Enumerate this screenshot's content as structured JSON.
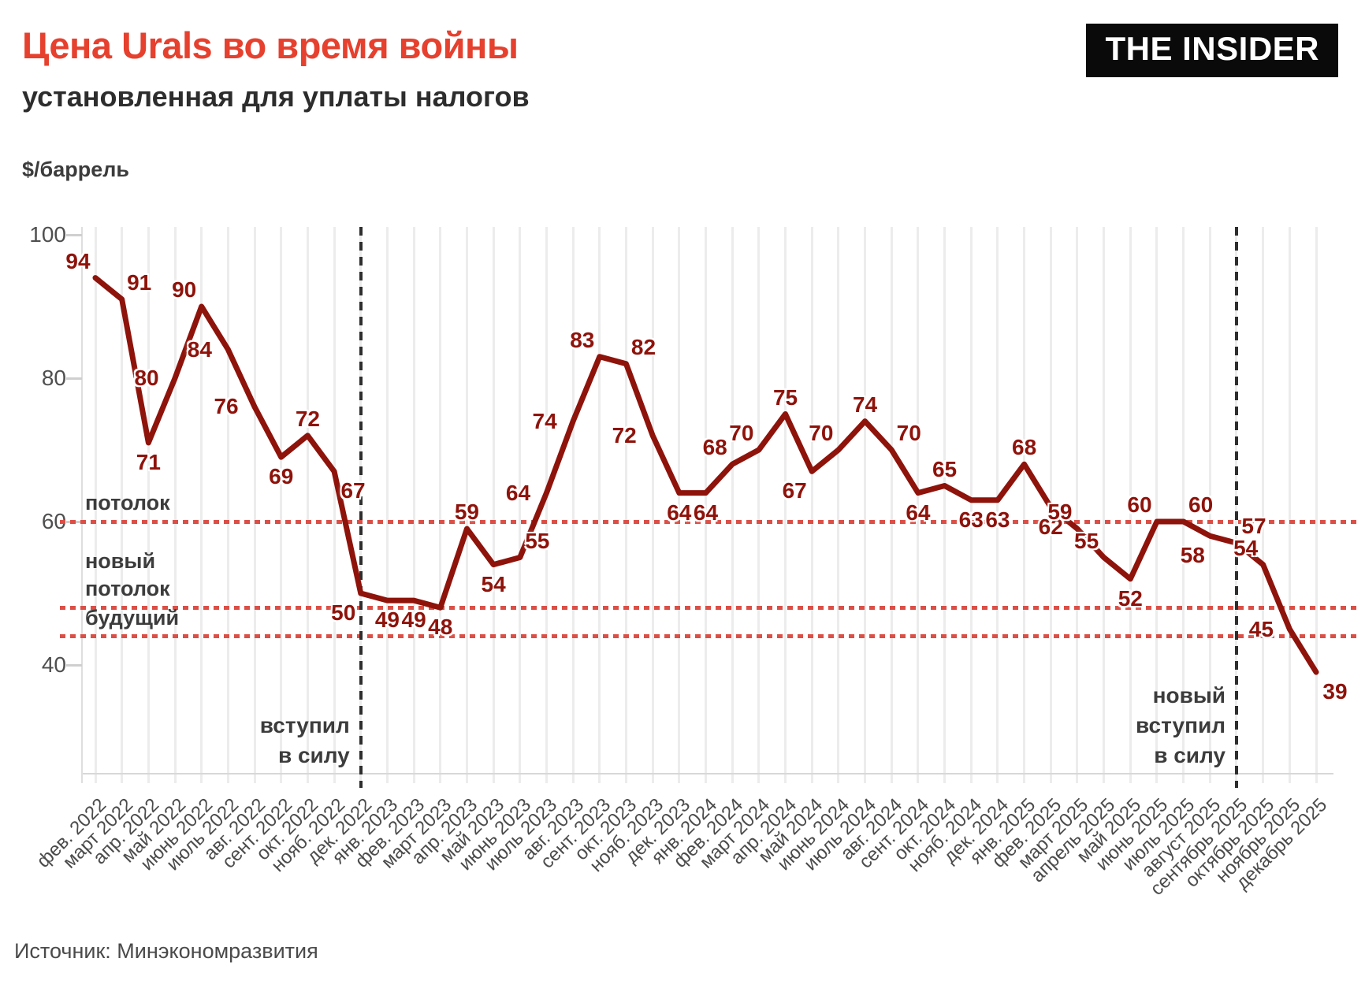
{
  "header": {
    "title": "Цена Urals во время войны",
    "subtitle": "установленная для уплаты налогов",
    "logo": "THE INSIDER"
  },
  "y_axis": {
    "unit_label": "$/баррель",
    "ticks": [
      100,
      80,
      60,
      40
    ]
  },
  "source": "Источник: Минэкономразвития",
  "colors": {
    "title_accent": "#e6402e",
    "series_line": "#8e130b",
    "data_label": "#8e130b",
    "reference_dotted": "#dc4f46",
    "event_dashed": "#2e2e2e",
    "grid": "#ececec"
  },
  "reference_lines": [
    {
      "label_lines": [
        "потолок"
      ],
      "value": 60
    },
    {
      "label_lines": [
        "новый",
        "потолок"
      ],
      "value": 48
    },
    {
      "label_lines": [
        "будущий"
      ],
      "value": 44
    }
  ],
  "event_lines": [
    {
      "month": "дек. 2022",
      "month_index": 10,
      "label_lines": [
        "вступил",
        "в силу"
      ]
    },
    {
      "month": "сентябрь 2025",
      "month_index": 43,
      "label_lines": [
        "новый",
        "вступил",
        "в силу"
      ]
    }
  ],
  "chart_data": {
    "type": "line",
    "title": "Цена Urals во время войны, установленная для уплаты налогов",
    "xlabel": "",
    "ylabel": "$/баррель",
    "ylim": [
      25,
      102
    ],
    "yticks": [
      40,
      60,
      80,
      100
    ],
    "grid": "vertical-only",
    "legend_position": "none",
    "x": [
      "фев. 2022",
      "март 2022",
      "апр. 2022",
      "май 2022",
      "июнь 2022",
      "июль 2022",
      "авг. 2022",
      "сент. 2022",
      "окт. 2022",
      "нояб. 2022",
      "дек. 2022",
      "янв. 2023",
      "фев. 2023",
      "март 2023",
      "апр. 2023",
      "май 2023",
      "июнь 2023",
      "июль 2023",
      "авг. 2023",
      "сент. 2023",
      "окт. 2023",
      "нояб. 2023",
      "дек. 2023",
      "янв. 2024",
      "фев. 2024",
      "март 2024",
      "апр. 2024",
      "май 2024",
      "июнь 2024",
      "июль 2024",
      "авг. 2024",
      "сент. 2024",
      "окт. 2024",
      "нояб. 2024",
      "дек. 2024",
      "янв. 2025",
      "фев. 2025",
      "март 2025",
      "апрель 2025",
      "май 2025",
      "июнь 2025",
      "июль 2025",
      "август 2025",
      "сентябрь 2025",
      "октябрь 2025",
      "ноябрь 2025",
      "декабрь 2025"
    ],
    "series": [
      {
        "name": "Цена Urals, $/баррель",
        "values": [
          94,
          91,
          71,
          80,
          90,
          84,
          76,
          69,
          72,
          67,
          50,
          49,
          49,
          48,
          59,
          54,
          55,
          64,
          74,
          83,
          82,
          72,
          64,
          64,
          68,
          70,
          75,
          67,
          70,
          74,
          70,
          64,
          65,
          63,
          63,
          68,
          62,
          59,
          55,
          52,
          60,
          60,
          58,
          57,
          54,
          45,
          39
        ]
      }
    ],
    "label_pos": [
      "al",
      "ar",
      "b",
      "l",
      "al",
      "l",
      "l",
      "b",
      "a",
      "br",
      "bl",
      "b",
      "b",
      "b",
      "a",
      "b",
      "ar",
      "l",
      "l",
      "al",
      "ar",
      "l",
      "b",
      "b",
      "al",
      "al",
      "a",
      "bl",
      "al",
      "a",
      "ar",
      "b",
      "a",
      "b",
      "b",
      "a",
      "b",
      "al",
      "al",
      "b",
      "al",
      "ar",
      "bl",
      "ar",
      "al",
      "l",
      "br"
    ]
  }
}
